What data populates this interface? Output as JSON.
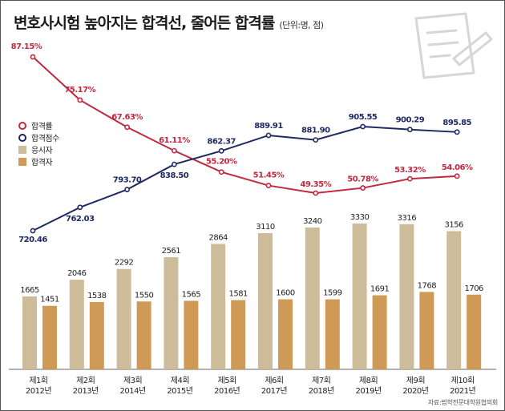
{
  "header": {
    "title": "변호사시험 높아지는 합격선, 줄어든 합격률",
    "unit": "(단위:명, 점)"
  },
  "source": "자료:법학전문대학원협의회",
  "colors": {
    "rate": "#c0293f",
    "score": "#1f2a63",
    "applicants": "#cdbc9a",
    "passers": "#cf9a55",
    "axis": "#666666"
  },
  "chart_data": {
    "type": "bar+line",
    "categories": [
      "제1회\n2012년",
      "제2회\n2013년",
      "제3회\n2014년",
      "제4회\n2015년",
      "제5회\n2016년",
      "제6회\n2017년",
      "제7회\n2018년",
      "제8회\n2019년",
      "제9회\n2020년",
      "제10회\n2021년"
    ],
    "bar_series": [
      {
        "name": "응시자",
        "values": [
          1665,
          2046,
          2292,
          2561,
          2864,
          3110,
          3240,
          3330,
          3316,
          3156
        ],
        "labels": [
          "1665",
          "2046",
          "2292",
          "2561",
          "2864",
          "3110",
          "3240",
          "3330",
          "3316",
          "3156"
        ]
      },
      {
        "name": "합격자",
        "values": [
          1451,
          1538,
          1550,
          1565,
          1581,
          1600,
          1599,
          1691,
          1768,
          1706
        ],
        "labels": [
          "1451",
          "1538",
          "1550",
          "1565",
          "1581",
          "1600",
          "1599",
          "1691",
          "1768",
          "1706"
        ]
      }
    ],
    "line_series": [
      {
        "name": "합격률",
        "values": [
          87.15,
          75.17,
          67.63,
          61.11,
          55.2,
          51.45,
          49.35,
          50.78,
          53.32,
          54.06
        ],
        "labels": [
          "87.15%",
          "75.17%",
          "67.63%",
          "61.11%",
          "55.20%",
          "51.45%",
          "49.35%",
          "50.78%",
          "53.32%",
          "54.06%"
        ]
      },
      {
        "name": "합격점수",
        "values": [
          720.46,
          762.03,
          793.7,
          838.5,
          862.37,
          889.91,
          881.9,
          905.55,
          900.29,
          895.85
        ],
        "labels": [
          "720.46",
          "762.03",
          "793.70",
          "838.50",
          "862.37",
          "889.91",
          "881.90",
          "905.55",
          "900.29",
          "895.85"
        ]
      }
    ],
    "legend": [
      "합격률",
      "합격점수",
      "응시자",
      "합격자"
    ],
    "legend_position": "left"
  }
}
